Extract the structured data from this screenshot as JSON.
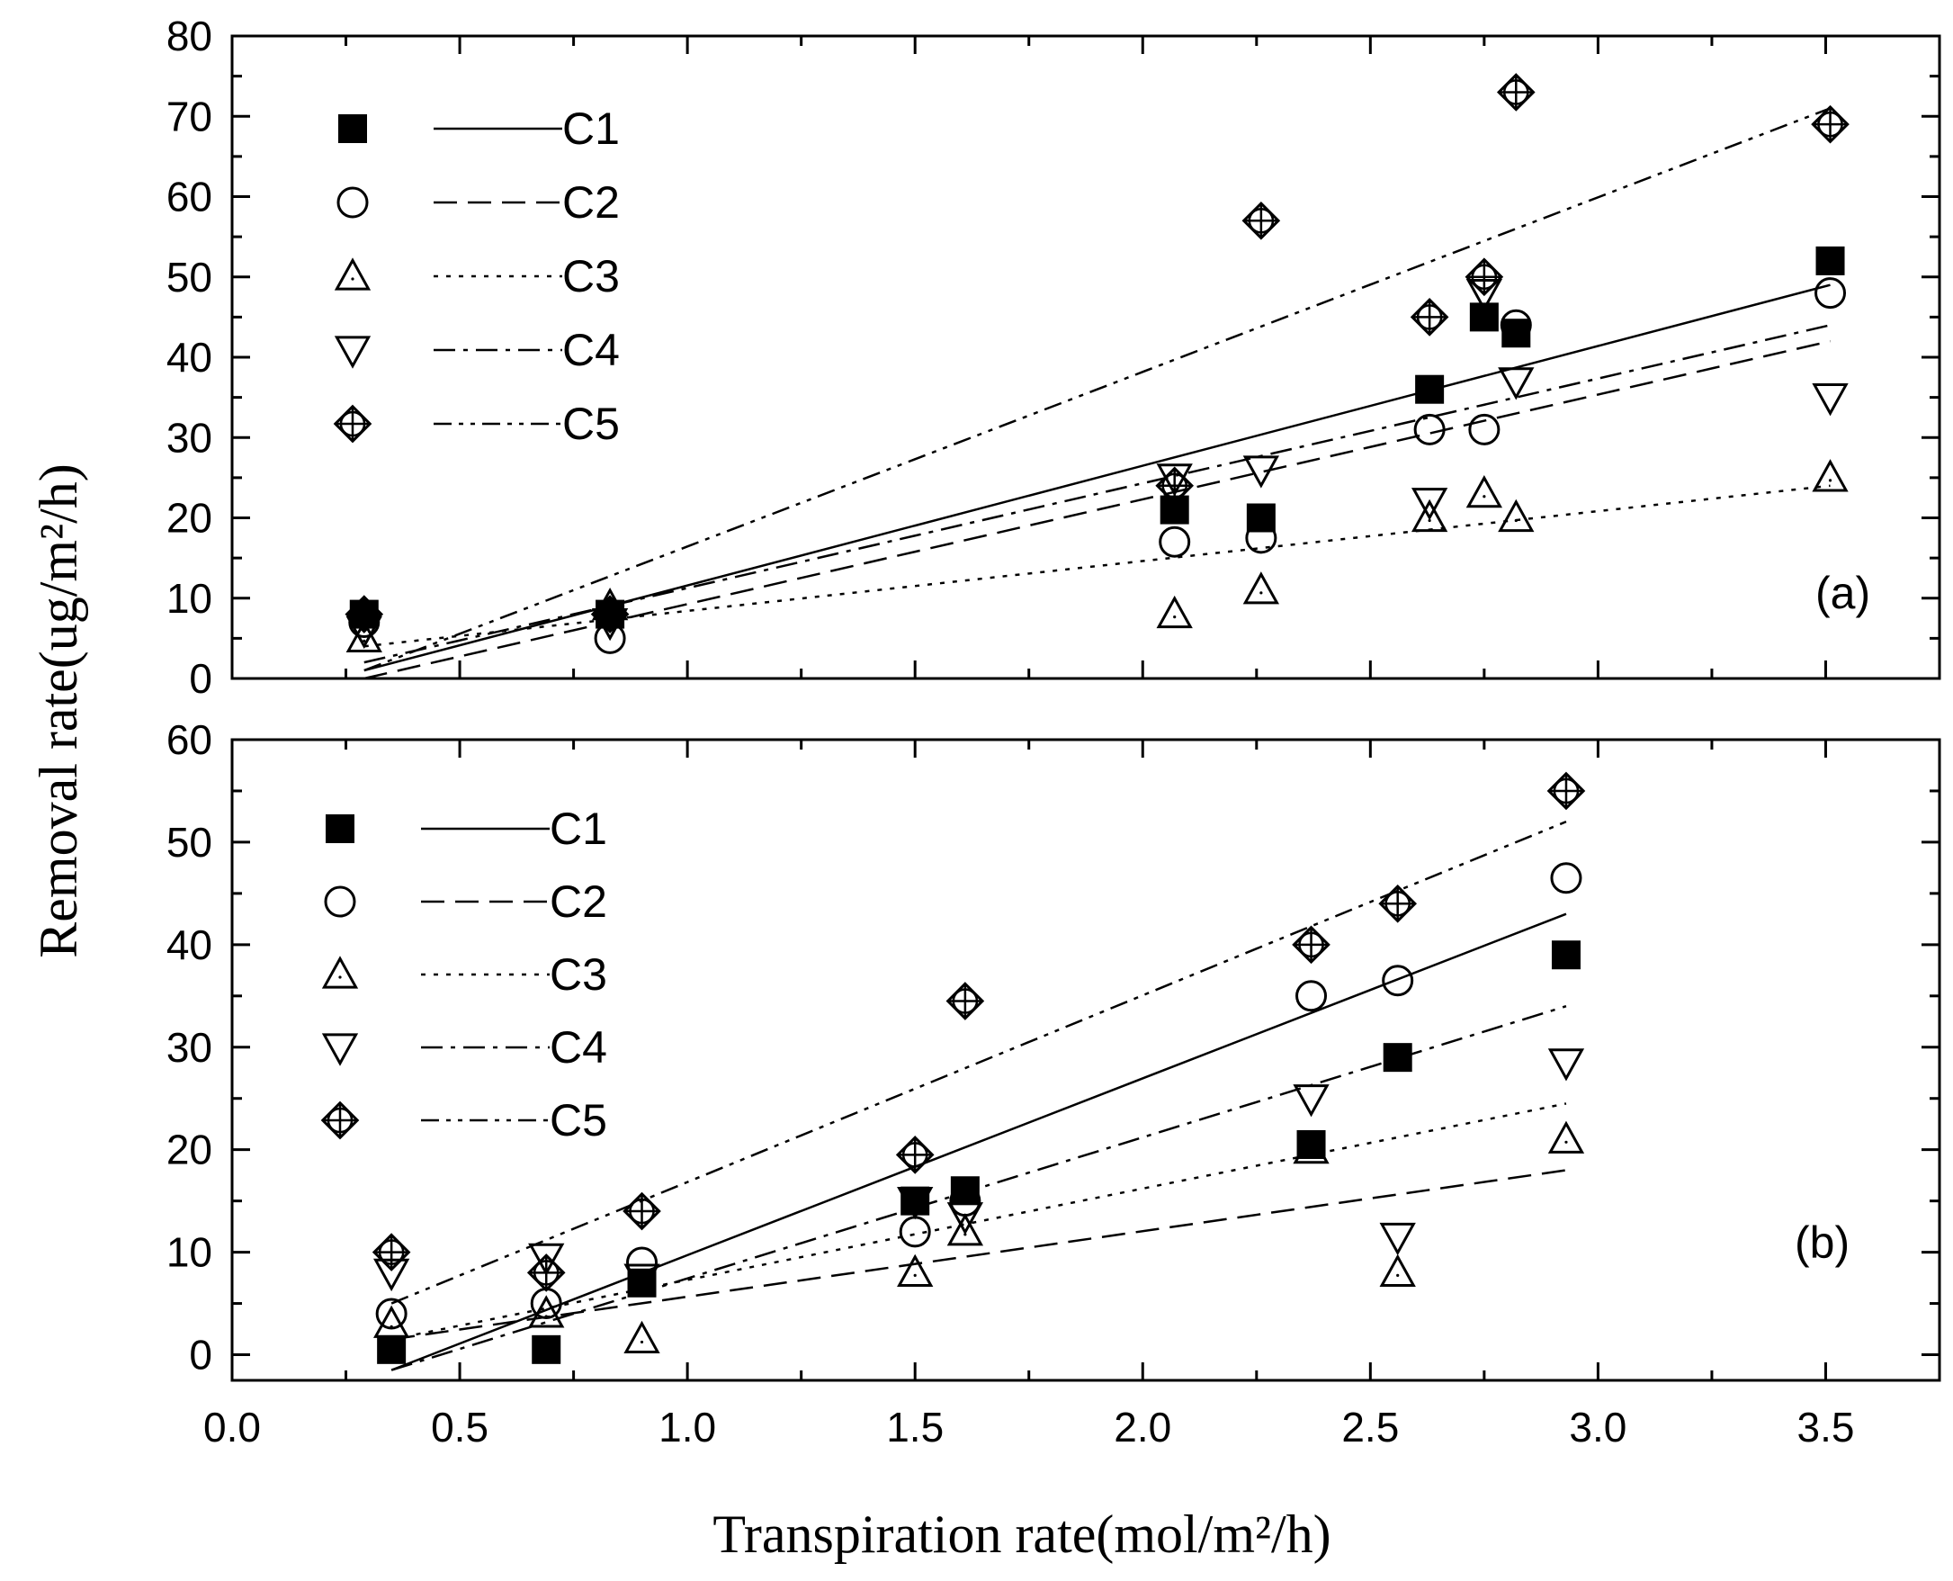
{
  "x_axis_title": "Transpiration rate(mol/m²/h)",
  "y_axis_title": "Removal rate(ug/m²/h)",
  "colors": {
    "ink": "#000000",
    "background": "#ffffff"
  },
  "chart_data": [
    {
      "type": "scatter",
      "panel_label": "(a)",
      "legend_position": "top-left",
      "xlim": [
        0.0,
        3.75
      ],
      "ylim": [
        0,
        80
      ],
      "x_ticks": [
        "0.0",
        "0.5",
        "1.0",
        "1.5",
        "2.0",
        "2.5",
        "3.0",
        "3.5"
      ],
      "y_ticks": [
        "0",
        "10",
        "20",
        "30",
        "40",
        "50",
        "60",
        "70",
        "80"
      ],
      "grid": false,
      "series": [
        {
          "name": "C1",
          "marker": "filled-square",
          "line_style": "solid",
          "x": [
            0.29,
            0.83,
            2.07,
            2.26,
            2.63,
            2.75,
            2.82,
            3.51
          ],
          "y": [
            8,
            8,
            21,
            20,
            36,
            45,
            43,
            52
          ],
          "fit": {
            "x": [
              0.29,
              3.51
            ],
            "y": [
              1,
              49
            ]
          }
        },
        {
          "name": "C2",
          "marker": "open-circle",
          "line_style": "dashed",
          "x": [
            0.29,
            0.83,
            2.07,
            2.26,
            2.63,
            2.75,
            2.82,
            3.51
          ],
          "y": [
            7,
            5,
            17,
            17.5,
            31,
            31,
            44,
            48
          ],
          "fit": {
            "x": [
              0.29,
              3.51
            ],
            "y": [
              0,
              42
            ]
          }
        },
        {
          "name": "C3",
          "marker": "open-triangle-up",
          "line_style": "dotted",
          "x": [
            0.29,
            0.83,
            2.07,
            2.26,
            2.63,
            2.75,
            2.82,
            3.51
          ],
          "y": [
            5,
            9,
            8,
            11,
            20,
            23,
            20,
            25
          ],
          "fit": {
            "x": [
              0.29,
              3.51
            ],
            "y": [
              4,
              24
            ]
          }
        },
        {
          "name": "C4",
          "marker": "open-triangle-down",
          "line_style": "dash-dot",
          "x": [
            0.29,
            0.83,
            2.07,
            2.26,
            2.63,
            2.75,
            2.82,
            3.51
          ],
          "y": [
            6,
            7,
            25,
            26,
            22,
            48,
            37,
            35
          ],
          "fit": {
            "x": [
              0.29,
              3.51
            ],
            "y": [
              2,
              44
            ]
          }
        },
        {
          "name": "C5",
          "marker": "circled-plus-diamond",
          "line_style": "dash-dot-dot",
          "x": [
            0.29,
            0.83,
            2.07,
            2.26,
            2.63,
            2.75,
            2.82,
            3.51
          ],
          "y": [
            8,
            8,
            24,
            57,
            45,
            50,
            73,
            69
          ],
          "fit": {
            "x": [
              0.29,
              3.51
            ],
            "y": [
              1,
              71
            ]
          }
        }
      ]
    },
    {
      "type": "scatter",
      "panel_label": "(b)",
      "legend_position": "top-left",
      "xlim": [
        0.0,
        3.75
      ],
      "ylim": [
        -2.5,
        60
      ],
      "x_ticks": [
        "0.0",
        "0.5",
        "1.0",
        "1.5",
        "2.0",
        "2.5",
        "3.0",
        "3.5"
      ],
      "y_ticks": [
        "0",
        "10",
        "20",
        "30",
        "40",
        "50",
        "60"
      ],
      "grid": false,
      "series": [
        {
          "name": "C1",
          "marker": "filled-square",
          "line_style": "solid",
          "x": [
            0.35,
            0.69,
            0.9,
            1.5,
            1.61,
            2.37,
            2.56,
            2.93
          ],
          "y": [
            0.5,
            0.5,
            7,
            15,
            16,
            20.5,
            29,
            39
          ],
          "fit": {
            "x": [
              0.35,
              2.93
            ],
            "y": [
              -1.5,
              43
            ]
          }
        },
        {
          "name": "C2",
          "marker": "open-circle",
          "line_style": "dashed",
          "x": [
            0.35,
            0.69,
            0.9,
            1.5,
            1.61,
            2.37,
            2.56,
            2.93
          ],
          "y": [
            4,
            5,
            9,
            12,
            15,
            35,
            36.5,
            46.5
          ],
          "fit": {
            "x": [
              0.35,
              2.93
            ],
            "y": [
              1.5,
              18
            ]
          }
        },
        {
          "name": "C3",
          "marker": "open-triangle-up",
          "line_style": "dotted",
          "x": [
            0.35,
            0.69,
            0.9,
            1.5,
            1.61,
            2.37,
            2.56,
            2.93
          ],
          "y": [
            3,
            4,
            1.5,
            8,
            12,
            20,
            8,
            21
          ],
          "fit": {
            "x": [
              0.35,
              2.93
            ],
            "y": [
              1.5,
              24.5
            ]
          }
        },
        {
          "name": "C4",
          "marker": "open-triangle-down",
          "line_style": "dash-dot",
          "x": [
            0.35,
            0.69,
            0.9,
            1.5,
            1.61,
            2.37,
            2.56,
            2.93
          ],
          "y": [
            8,
            9.5,
            7.5,
            15,
            13.5,
            25,
            11.5,
            28.5
          ],
          "fit": {
            "x": [
              0.35,
              2.93
            ],
            "y": [
              -1.5,
              34
            ]
          }
        },
        {
          "name": "C5",
          "marker": "circled-plus-diamond",
          "line_style": "dash-dot-dot",
          "x": [
            0.35,
            0.69,
            0.9,
            1.5,
            1.61,
            2.37,
            2.56,
            2.93
          ],
          "y": [
            10,
            8,
            14,
            19.5,
            34.5,
            40,
            44,
            55
          ],
          "fit": {
            "x": [
              0.35,
              2.93
            ],
            "y": [
              5,
              52
            ]
          }
        }
      ]
    }
  ]
}
